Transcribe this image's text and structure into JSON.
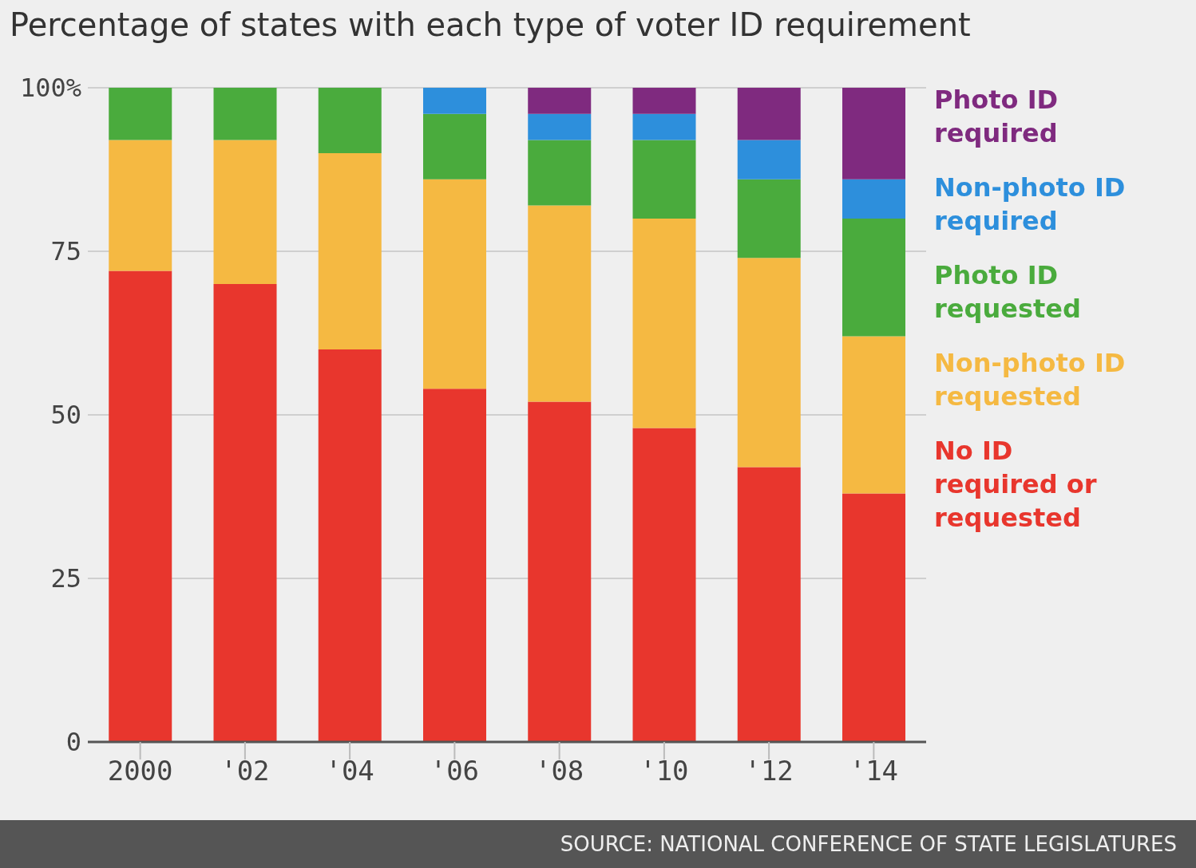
{
  "chart_data": {
    "type": "bar",
    "title": "Percentage of states with each type of voter ID requirement",
    "categories": [
      "2000",
      "'02",
      "'04",
      "'06",
      "'08",
      "'10",
      "'12",
      "'14"
    ],
    "stacked": true,
    "series": [
      {
        "name": "No ID required or requested",
        "color": "#e8362d",
        "values": [
          72,
          70,
          60,
          54,
          52,
          48,
          42,
          38
        ]
      },
      {
        "name": "Non-photo ID requested",
        "color": "#f5b942",
        "values": [
          20,
          22,
          30,
          32,
          30,
          32,
          32,
          24
        ]
      },
      {
        "name": "Photo ID requested",
        "color": "#4aab3d",
        "values": [
          8,
          8,
          10,
          10,
          10,
          12,
          12,
          18
        ]
      },
      {
        "name": "Non-photo ID required",
        "color": "#2d8fdc",
        "values": [
          0,
          0,
          0,
          4,
          4,
          4,
          6,
          6
        ]
      },
      {
        "name": "Photo ID required",
        "color": "#7f2a7f",
        "values": [
          0,
          0,
          0,
          0,
          4,
          4,
          8,
          14
        ]
      }
    ],
    "ylim": [
      0,
      100
    ],
    "yticks": [
      0,
      25,
      50,
      75,
      {
        "value": 100,
        "label": "100%"
      }
    ],
    "grid": "y",
    "legend": "right",
    "annotations": [
      "SOURCE: NATIONAL CONFERENCE OF STATE LEGISLATURES"
    ]
  }
}
